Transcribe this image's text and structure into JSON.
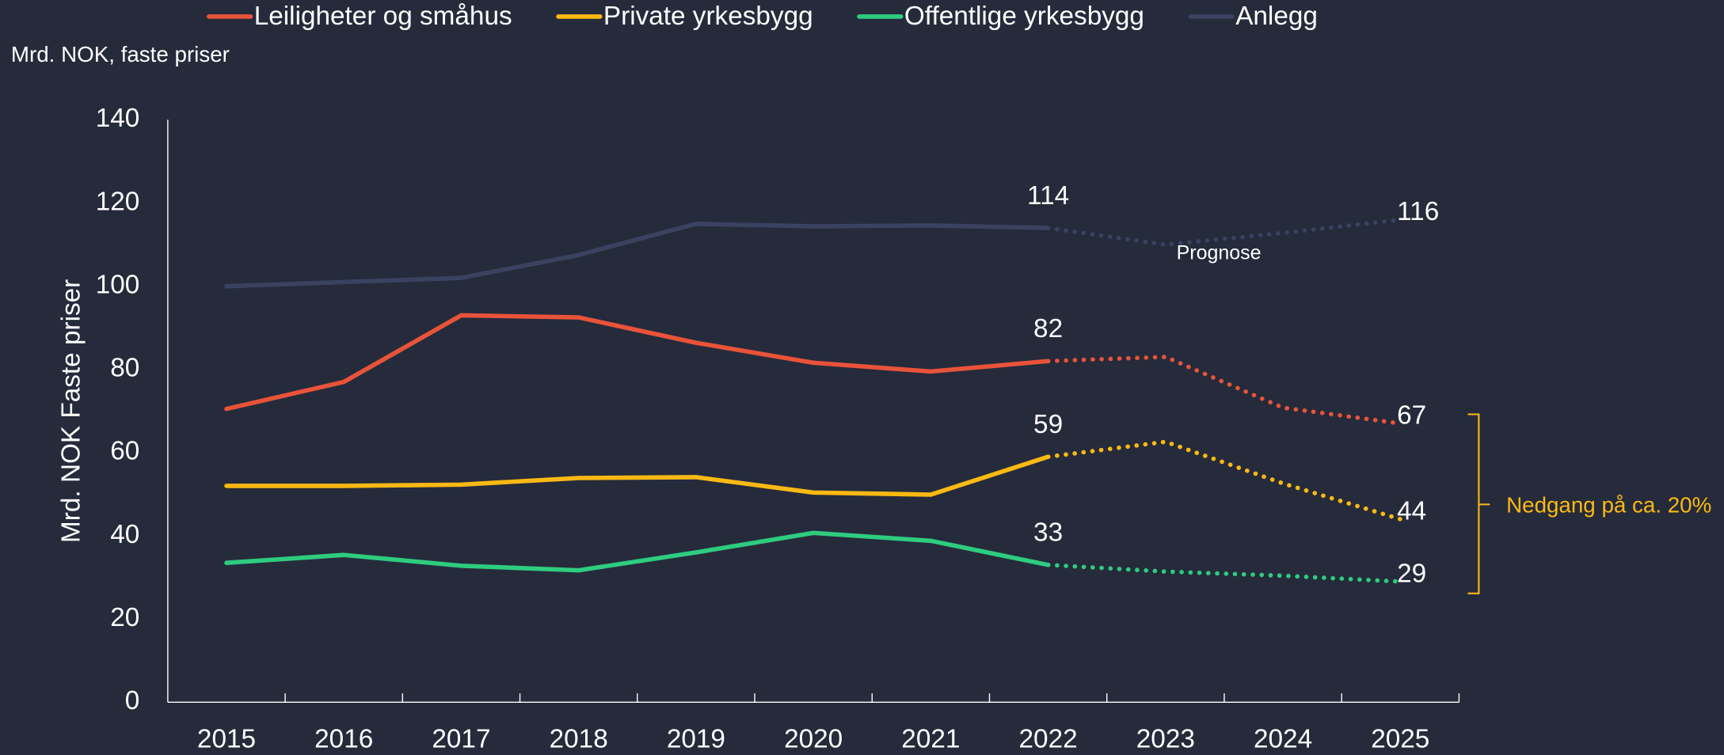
{
  "chart_data": {
    "type": "line",
    "subtitle": "Mrd. NOK, faste priser",
    "y_label": "Mrd. NOK Faste priser",
    "categories": [
      "2015",
      "2016",
      "2017",
      "2018",
      "2019",
      "2020",
      "2021",
      "2022",
      "2023",
      "2024",
      "2025"
    ],
    "dashed_from": "2022",
    "data_labels_at": [
      "2022",
      "2025"
    ],
    "series": [
      {
        "name": "Leiligheter og småhus",
        "color": "#e8533a",
        "values": [
          70.5,
          77,
          93,
          92.5,
          86.4,
          81.6,
          79.5,
          82,
          83,
          70.8,
          67
        ]
      },
      {
        "name": "Private yrkesbygg",
        "color": "#fdb913",
        "values": [
          52,
          52,
          52.3,
          53.9,
          54.1,
          50.4,
          49.9,
          59,
          62.6,
          52.6,
          44
        ]
      },
      {
        "name": "Offentlige yrkesbygg",
        "color": "#2ecc7f",
        "values": [
          33.5,
          35.4,
          32.8,
          31.7,
          36,
          40.7,
          38.8,
          33,
          31.4,
          30.4,
          29
        ]
      },
      {
        "name": "Anlegg",
        "color": "#3a4260",
        "values": [
          100,
          101,
          102,
          107.5,
          115,
          114.4,
          114.6,
          114,
          110,
          112.8,
          116
        ]
      }
    ],
    "ylim": [
      0,
      140
    ],
    "yticks": [
      0,
      20,
      40,
      60,
      80,
      100,
      120,
      140
    ],
    "annotations": {
      "forecast": "Prognose",
      "decline": "Nedgang på ca. 20%"
    },
    "annotation_color": "#fdb913"
  }
}
